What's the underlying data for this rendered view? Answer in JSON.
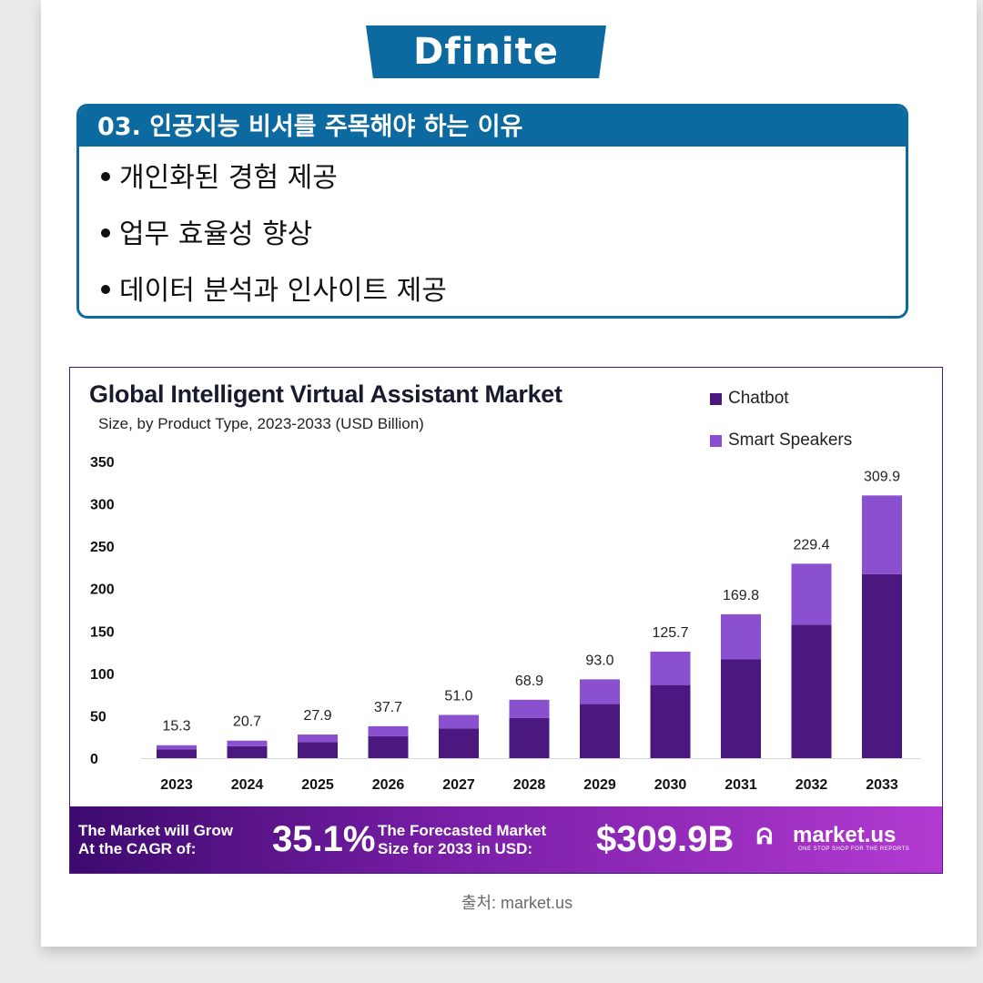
{
  "brand": {
    "logo_text": "Dfinite"
  },
  "info": {
    "header": "03. 인공지능 비서를 주목해야 하는 이유",
    "items": [
      "개인화된 경험 제공",
      "업무 효율성 향상",
      "데이터 분석과 인사이트 제공"
    ]
  },
  "chart_data": {
    "type": "bar",
    "stacked": true,
    "title": "Global Intelligent Virtual Assistant Market",
    "subtitle": "Size, by Product Type, 2023-2033 (USD Billion)",
    "categories": [
      "2023",
      "2024",
      "2025",
      "2026",
      "2027",
      "2028",
      "2029",
      "2030",
      "2031",
      "2032",
      "2033"
    ],
    "series": [
      {
        "name": "Chatbot",
        "color": "#4b1880",
        "values": [
          10.5,
          14.2,
          19.1,
          25.8,
          35.0,
          47.3,
          63.8,
          86.3,
          116.5,
          157.5,
          217.0
        ]
      },
      {
        "name": "Smart Speakers",
        "color": "#8a50cf",
        "values": [
          4.8,
          6.5,
          8.8,
          11.9,
          16.0,
          21.6,
          29.2,
          39.4,
          53.3,
          71.9,
          92.9
        ]
      }
    ],
    "totals": [
      "15.3",
      "20.7",
      "27.9",
      "37.7",
      "51.0",
      "68.9",
      "93.0",
      "125.7",
      "169.8",
      "229.4",
      "309.9"
    ],
    "ylim": [
      0,
      350
    ],
    "yticks": [
      "0",
      "50",
      "100",
      "150",
      "200",
      "250",
      "300",
      "350"
    ],
    "legend_position": "top-right",
    "grid": false
  },
  "banner": {
    "cagr_label_line1": "The Market will Grow",
    "cagr_label_line2": "At the CAGR of:",
    "cagr_value": "35.1%",
    "forecast_label_line1": "The Forecasted Market",
    "forecast_label_line2": "Size for 2033 in USD:",
    "forecast_value": "$309.9B",
    "brand_mark": "ᕱ",
    "brand_name": "market.us",
    "brand_tagline": "ONE STOP SHOP FOR THE REPORTS"
  },
  "source": "출처: market.us"
}
